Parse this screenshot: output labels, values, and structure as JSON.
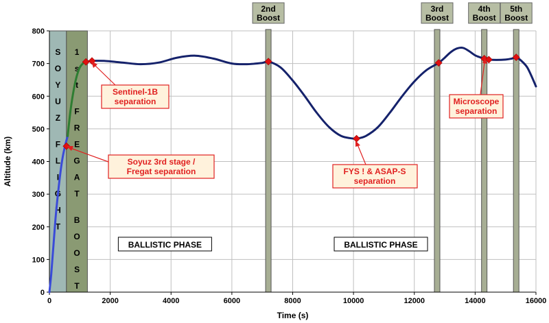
{
  "chart_data": {
    "type": "line",
    "xlabel": "Time (s)",
    "ylabel": "Altitude (km)",
    "xlim": [
      0,
      16000
    ],
    "ylim": [
      0,
      800
    ],
    "x_ticks": [
      "0",
      "2000",
      "4000",
      "6000",
      "8000",
      "10000",
      "12000",
      "14000",
      "16000"
    ],
    "y_ticks": [
      "0",
      "100",
      "200",
      "300",
      "400",
      "500",
      "600",
      "700",
      "800"
    ],
    "grid": true,
    "series": [
      {
        "segment": "soyuz-ascent",
        "color": "#3a4bd8",
        "x": [
          0,
          60,
          130,
          200,
          280,
          360,
          440,
          520,
          600
        ],
        "y": [
          0,
          55,
          140,
          225,
          300,
          365,
          415,
          450,
          478
        ]
      },
      {
        "segment": "fregat-boost",
        "color": "#2e7d32",
        "x": [
          600,
          700,
          800,
          900,
          1000,
          1100,
          1150,
          1200
        ],
        "y": [
          478,
          560,
          620,
          662,
          688,
          700,
          703,
          705
        ]
      },
      {
        "segment": "ballistic-coast",
        "color": "#15226b",
        "x": [
          1200,
          1400,
          1800,
          2400,
          3000,
          3600,
          4200,
          4800,
          5400,
          6000,
          6500,
          7000,
          7200,
          7600,
          8000,
          8400,
          8800,
          9200,
          9600,
          10000,
          10100,
          10400,
          10800,
          11200,
          11600,
          12000,
          12400,
          12800,
          13000,
          13200,
          13400,
          13600,
          13800,
          14000,
          14200,
          14300,
          14450,
          14700,
          15000,
          15200,
          15350,
          15500,
          15700,
          15850,
          16000
        ],
        "y": [
          705,
          708,
          708,
          703,
          698,
          703,
          718,
          724,
          715,
          700,
          698,
          702,
          706,
          688,
          648,
          600,
          548,
          505,
          478,
          470,
          470,
          478,
          505,
          550,
          600,
          645,
          680,
          702,
          718,
          735,
          746,
          748,
          738,
          725,
          718,
          715,
          712,
          711,
          712,
          715,
          719,
          710,
          690,
          662,
          630
        ]
      }
    ],
    "events": [
      {
        "x": 560,
        "y": 447,
        "label": "Soyuz 3rd stage / Fregat separation"
      },
      {
        "x": 1200,
        "y": 705,
        "label": ""
      },
      {
        "x": 1400,
        "y": 708,
        "label": "Sentinel-1B separation"
      },
      {
        "x": 7200,
        "y": 706,
        "label": ""
      },
      {
        "x": 10100,
        "y": 470,
        "label": "FYS ! & ASAP-S separation"
      },
      {
        "x": 12800,
        "y": 702,
        "label": ""
      },
      {
        "x": 14300,
        "y": 715,
        "label": "Microscope separation"
      },
      {
        "x": 14450,
        "y": 712,
        "label": ""
      },
      {
        "x": 15350,
        "y": 719,
        "label": ""
      }
    ],
    "phases": [
      {
        "label": "SOYUZ FLIGHT",
        "x0": 0,
        "x1": 560,
        "color": "#9fb8b4",
        "vertical": true
      },
      {
        "label": "1st FREGAT BOOST",
        "x0": 560,
        "x1": 1250,
        "color": "#8a9a73",
        "vertical": true
      }
    ],
    "boosts": [
      {
        "label_line1": "2nd",
        "label_line2": "Boost",
        "x": 7200
      },
      {
        "label_line1": "3rd",
        "label_line2": "Boost",
        "x": 12750
      },
      {
        "label_line1": "4th",
        "label_line2": "Boost",
        "x": 14300
      },
      {
        "label_line1": "5th",
        "label_line2": "Boost",
        "x": 15350
      }
    ],
    "ballistic_labels": [
      {
        "label": "BALLISTIC PHASE",
        "x": 3800,
        "y": 145
      },
      {
        "label": "BALLISTIC PHASE",
        "x": 10900,
        "y": 145
      }
    ],
    "colors": {
      "marker": "#e01010",
      "callout_border": "#e02020",
      "callout_fill": "#fff2dc",
      "callout_text": "#e02020",
      "boost_bar": "#a7ae94",
      "boost_label_fill": "#b7bea4"
    }
  },
  "callouts": {
    "fregat_sep_line1": "Soyuz 3rd stage /",
    "fregat_sep_line2": "Fregat separation",
    "sentinel_line1": "Sentinel-1B",
    "sentinel_line2": "separation",
    "fys_line1": "FYS ! & ASAP-S",
    "fys_line2": "separation",
    "microscope_line1": "Microscope",
    "microscope_line2": "separation"
  }
}
